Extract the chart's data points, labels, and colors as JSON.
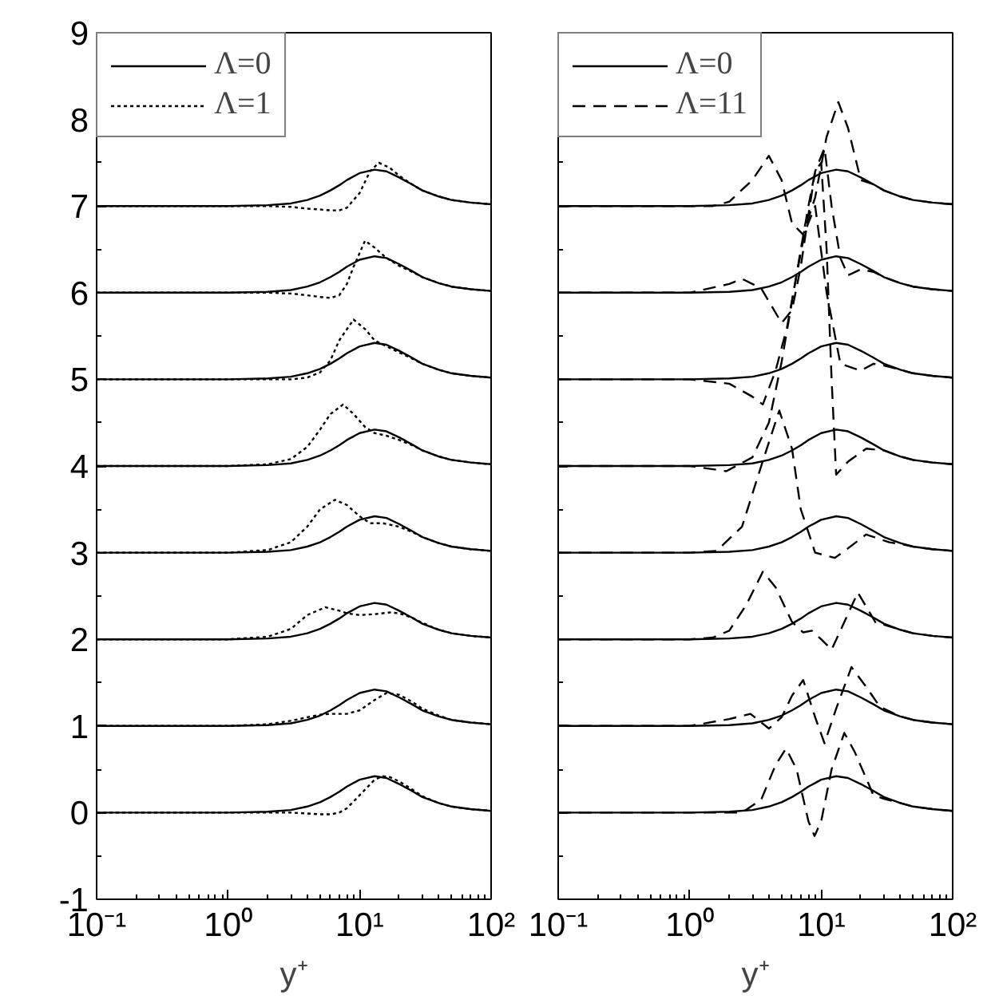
{
  "chart_data": [
    {
      "type": "line",
      "xlabel": "y⁺",
      "log": "x",
      "xlim": [
        0.1,
        100
      ],
      "ylim": [
        -1,
        9
      ],
      "legend": "top left",
      "grid": false,
      "xticks": [
        {
          "value": 0.1,
          "label": "10⁻¹"
        },
        {
          "value": 1,
          "label": "10⁰"
        },
        {
          "value": 10,
          "label": "10¹"
        },
        {
          "value": 100,
          "label": "10²"
        }
      ],
      "yticks": [
        -1,
        0,
        1,
        2,
        3,
        4,
        5,
        6,
        7,
        8,
        9
      ],
      "series": [
        {
          "name": "Λ=0",
          "color": "#000000",
          "line_style": "solid",
          "x": [
            0.1,
            1,
            2,
            3,
            4,
            5,
            6,
            7,
            8,
            10,
            13,
            16,
            20,
            25,
            30,
            40,
            50,
            70,
            100
          ],
          "values": [
            0,
            0,
            0.01,
            0.03,
            0.07,
            0.12,
            0.18,
            0.24,
            0.3,
            0.38,
            0.42,
            0.4,
            0.33,
            0.25,
            0.18,
            0.11,
            0.07,
            0.04,
            0.02
          ]
        },
        {
          "name": "Λ=1",
          "color": "#000000",
          "line_style": "dotted",
          "x": [
            0.1,
            1,
            3,
            4,
            5,
            6,
            7,
            8,
            10,
            13,
            15,
            17,
            20,
            25,
            30,
            40,
            50,
            70,
            100
          ],
          "values": [
            0,
            0,
            0,
            -0.01,
            -0.02,
            -0.02,
            0,
            0.05,
            0.2,
            0.38,
            0.42,
            0.41,
            0.36,
            0.27,
            0.19,
            0.11,
            0.07,
            0.04,
            0.02
          ]
        },
        {
          "color": "#000000",
          "line_style": "solid",
          "x": [
            0.1,
            1,
            2,
            3,
            4,
            5,
            6,
            7,
            8,
            10,
            13,
            16,
            20,
            25,
            30,
            40,
            50,
            70,
            100
          ],
          "values": [
            1,
            1,
            1.01,
            1.03,
            1.07,
            1.12,
            1.18,
            1.24,
            1.3,
            1.38,
            1.42,
            1.4,
            1.33,
            1.25,
            1.18,
            1.11,
            1.07,
            1.04,
            1.02
          ]
        },
        {
          "color": "#000000",
          "line_style": "dotted",
          "x": [
            0.1,
            1,
            2,
            3,
            4,
            5,
            6,
            7,
            8,
            10,
            13,
            16,
            20,
            25,
            30,
            40,
            50,
            70,
            100
          ],
          "values": [
            1,
            1,
            1.02,
            1.06,
            1.1,
            1.13,
            1.14,
            1.14,
            1.14,
            1.18,
            1.3,
            1.38,
            1.36,
            1.28,
            1.2,
            1.12,
            1.07,
            1.04,
            1.02
          ]
        },
        {
          "color": "#000000",
          "line_style": "solid",
          "x": [
            0.1,
            1,
            2,
            3,
            4,
            5,
            6,
            7,
            8,
            10,
            13,
            16,
            20,
            25,
            30,
            40,
            50,
            70,
            100
          ],
          "values": [
            2,
            2,
            2.01,
            2.03,
            2.07,
            2.12,
            2.18,
            2.24,
            2.3,
            2.38,
            2.42,
            2.4,
            2.33,
            2.25,
            2.18,
            2.11,
            2.07,
            2.04,
            2.02
          ]
        },
        {
          "color": "#000000",
          "line_style": "dotted",
          "x": [
            0.1,
            1,
            2,
            3,
            4,
            5.5,
            7,
            8,
            10,
            13,
            17,
            20,
            25,
            30,
            40,
            50,
            70,
            100
          ],
          "values": [
            2,
            2,
            2.03,
            2.12,
            2.28,
            2.37,
            2.33,
            2.3,
            2.28,
            2.29,
            2.31,
            2.3,
            2.25,
            2.19,
            2.11,
            2.07,
            2.04,
            2.02
          ]
        },
        {
          "color": "#000000",
          "line_style": "solid",
          "x": [
            0.1,
            1,
            2,
            3,
            4,
            5,
            6,
            7,
            8,
            10,
            13,
            16,
            20,
            25,
            30,
            40,
            50,
            70,
            100
          ],
          "values": [
            3,
            3,
            3.01,
            3.03,
            3.07,
            3.12,
            3.18,
            3.24,
            3.3,
            3.38,
            3.42,
            3.4,
            3.33,
            3.25,
            3.18,
            3.11,
            3.07,
            3.04,
            3.02
          ]
        },
        {
          "color": "#000000",
          "line_style": "dotted",
          "x": [
            0.1,
            1,
            2,
            3,
            4,
            5,
            6.5,
            8,
            10,
            12,
            15,
            20,
            25,
            30,
            40,
            50,
            70,
            100
          ],
          "values": [
            3,
            3,
            3.03,
            3.12,
            3.3,
            3.5,
            3.61,
            3.55,
            3.42,
            3.34,
            3.34,
            3.3,
            3.24,
            3.18,
            3.11,
            3.07,
            3.04,
            3.02
          ]
        },
        {
          "color": "#000000",
          "line_style": "solid",
          "x": [
            0.1,
            1,
            2,
            3,
            4,
            5,
            6,
            7,
            8,
            10,
            13,
            16,
            20,
            25,
            30,
            40,
            50,
            70,
            100
          ],
          "values": [
            4,
            4,
            4.01,
            4.03,
            4.07,
            4.12,
            4.18,
            4.24,
            4.3,
            4.38,
            4.42,
            4.4,
            4.33,
            4.25,
            4.18,
            4.11,
            4.07,
            4.04,
            4.02
          ]
        },
        {
          "color": "#000000",
          "line_style": "dotted",
          "x": [
            0.1,
            1,
            2,
            3,
            4,
            5,
            6,
            7.5,
            9,
            11,
            13,
            16,
            20,
            25,
            30,
            40,
            50,
            70,
            100
          ],
          "values": [
            4,
            4,
            4.02,
            4.08,
            4.22,
            4.42,
            4.6,
            4.71,
            4.6,
            4.45,
            4.38,
            4.35,
            4.3,
            4.24,
            4.18,
            4.11,
            4.07,
            4.04,
            4.02
          ]
        },
        {
          "color": "#000000",
          "line_style": "solid",
          "x": [
            0.1,
            1,
            2,
            3,
            4,
            5,
            6,
            7,
            8,
            10,
            13,
            16,
            20,
            25,
            30,
            40,
            50,
            70,
            100
          ],
          "values": [
            5,
            5,
            5.01,
            5.03,
            5.07,
            5.12,
            5.18,
            5.24,
            5.3,
            5.38,
            5.42,
            5.4,
            5.33,
            5.25,
            5.18,
            5.11,
            5.07,
            5.04,
            5.02
          ]
        },
        {
          "color": "#000000",
          "line_style": "dotted",
          "x": [
            0.1,
            1,
            2,
            3,
            4,
            5,
            6,
            7,
            9,
            11,
            13,
            16,
            20,
            25,
            30,
            40,
            50,
            70,
            100
          ],
          "values": [
            5,
            5,
            5,
            5,
            5.02,
            5.08,
            5.22,
            5.45,
            5.69,
            5.58,
            5.45,
            5.38,
            5.31,
            5.24,
            5.18,
            5.11,
            5.07,
            5.04,
            5.02
          ]
        },
        {
          "color": "#000000",
          "line_style": "solid",
          "x": [
            0.1,
            1,
            2,
            3,
            4,
            5,
            6,
            7,
            8,
            10,
            13,
            16,
            20,
            25,
            30,
            40,
            50,
            70,
            100
          ],
          "values": [
            6,
            6,
            6.01,
            6.03,
            6.07,
            6.12,
            6.18,
            6.24,
            6.3,
            6.38,
            6.42,
            6.4,
            6.33,
            6.25,
            6.18,
            6.11,
            6.07,
            6.04,
            6.02
          ]
        },
        {
          "color": "#000000",
          "line_style": "dotted",
          "x": [
            0.1,
            1,
            2,
            3,
            4,
            5,
            6,
            7,
            8,
            9,
            11,
            13,
            16,
            20,
            25,
            30,
            40,
            50,
            70,
            100
          ],
          "values": [
            6,
            6,
            6,
            5.99,
            5.97,
            5.95,
            5.94,
            5.97,
            6.1,
            6.3,
            6.6,
            6.52,
            6.4,
            6.31,
            6.24,
            6.18,
            6.11,
            6.07,
            6.04,
            6.02
          ]
        },
        {
          "color": "#000000",
          "line_style": "solid",
          "x": [
            0.1,
            1,
            2,
            3,
            4,
            5,
            6,
            7,
            8,
            10,
            13,
            16,
            20,
            25,
            30,
            40,
            50,
            70,
            100
          ],
          "values": [
            7,
            7,
            7.01,
            7.03,
            7.07,
            7.12,
            7.18,
            7.24,
            7.3,
            7.38,
            7.42,
            7.4,
            7.33,
            7.25,
            7.18,
            7.11,
            7.07,
            7.04,
            7.02
          ]
        },
        {
          "color": "#000000",
          "line_style": "dotted",
          "x": [
            0.1,
            1,
            2,
            3,
            4,
            5,
            6,
            7,
            8,
            10,
            12,
            14,
            17,
            20,
            25,
            30,
            40,
            50,
            70,
            100
          ],
          "values": [
            7,
            7,
            7,
            6.99,
            6.97,
            6.96,
            6.95,
            6.95,
            6.98,
            7.15,
            7.4,
            7.5,
            7.44,
            7.35,
            7.25,
            7.18,
            7.11,
            7.07,
            7.04,
            7.02
          ]
        }
      ]
    },
    {
      "type": "line",
      "xlabel": "y⁺",
      "log": "x",
      "xlim": [
        0.1,
        100
      ],
      "ylim": [
        -1,
        9
      ],
      "legend": "top left",
      "grid": false,
      "tick_labels": "x",
      "xticks": [
        {
          "value": 0.1,
          "label": "10⁻¹"
        },
        {
          "value": 1,
          "label": "10⁰"
        },
        {
          "value": 10,
          "label": "10¹"
        },
        {
          "value": 100,
          "label": "10²"
        }
      ],
      "yticks": [
        {
          "value": -1,
          "label": null
        },
        {
          "value": 0,
          "label": null
        },
        {
          "value": 1,
          "label": null
        },
        {
          "value": 2,
          "label": null
        },
        {
          "value": 3,
          "label": null
        },
        {
          "value": 4,
          "label": null
        },
        {
          "value": 5,
          "label": null
        },
        {
          "value": 6,
          "label": null
        },
        {
          "value": 7,
          "label": null
        },
        {
          "value": 8,
          "label": null
        },
        {
          "value": 9,
          "label": null
        }
      ],
      "series": [
        {
          "name": "Λ=0",
          "color": "#000000",
          "line_style": "solid",
          "x": [
            0.1,
            1,
            2,
            3,
            4,
            5,
            6,
            7,
            8,
            10,
            13,
            16,
            20,
            25,
            30,
            40,
            50,
            70,
            100
          ],
          "values": [
            0,
            0,
            0.01,
            0.03,
            0.07,
            0.12,
            0.18,
            0.24,
            0.3,
            0.38,
            0.42,
            0.4,
            0.33,
            0.25,
            0.18,
            0.11,
            0.07,
            0.04,
            0.02
          ]
        },
        {
          "name": "Λ=11",
          "color": "#000000",
          "line_style": "dashed",
          "x": [
            0.1,
            1,
            2.5,
            3.5,
            4.5,
            5.4,
            6.5,
            8,
            8.9,
            10,
            12,
            15,
            18,
            25,
            30,
            40,
            50,
            70,
            100
          ],
          "values": [
            0,
            0,
            0,
            0.15,
            0.55,
            0.74,
            0.5,
            -0.1,
            -0.27,
            -0.1,
            0.5,
            0.92,
            0.7,
            0.2,
            0.16,
            0.11,
            0.07,
            0.04,
            0.02
          ]
        },
        {
          "color": "#000000",
          "line_style": "solid",
          "x": [
            0.1,
            1,
            2,
            3,
            4,
            5,
            6,
            7,
            8,
            10,
            13,
            16,
            20,
            25,
            30,
            40,
            50,
            70,
            100
          ],
          "values": [
            1,
            1,
            1.01,
            1.03,
            1.07,
            1.12,
            1.18,
            1.24,
            1.3,
            1.38,
            1.42,
            1.4,
            1.33,
            1.25,
            1.18,
            1.11,
            1.07,
            1.04,
            1.02
          ]
        },
        {
          "color": "#000000",
          "line_style": "dashed",
          "x": [
            0.1,
            1,
            2,
            2.9,
            4,
            5,
            6,
            7.3,
            9,
            10.6,
            13,
            17,
            22,
            28,
            40,
            50,
            70,
            100
          ],
          "values": [
            1,
            1,
            1.08,
            1.14,
            0.97,
            1.1,
            1.35,
            1.53,
            1.1,
            0.8,
            1.2,
            1.68,
            1.45,
            1.22,
            1.11,
            1.07,
            1.04,
            1.02
          ]
        },
        {
          "color": "#000000",
          "line_style": "solid",
          "x": [
            0.1,
            1,
            2,
            3,
            4,
            5,
            6,
            7,
            8,
            10,
            13,
            16,
            20,
            25,
            30,
            40,
            50,
            70,
            100
          ],
          "values": [
            2,
            2,
            2.01,
            2.03,
            2.07,
            2.12,
            2.18,
            2.24,
            2.3,
            2.38,
            2.42,
            2.4,
            2.33,
            2.25,
            2.18,
            2.11,
            2.07,
            2.04,
            2.02
          ]
        },
        {
          "color": "#000000",
          "line_style": "dashed",
          "x": [
            0.1,
            1,
            1.5,
            2,
            2.7,
            3.6,
            4.5,
            6,
            7.3,
            8.5,
            10,
            12,
            15,
            19,
            26,
            30,
            40,
            50,
            70,
            100
          ],
          "values": [
            2,
            2,
            2.02,
            2.1,
            2.4,
            2.78,
            2.6,
            2.2,
            2.08,
            2.1,
            2,
            1.88,
            2.2,
            2.54,
            2.19,
            2.17,
            2.11,
            2.07,
            2.04,
            2.02
          ]
        },
        {
          "color": "#000000",
          "line_style": "solid",
          "x": [
            0.1,
            1,
            2,
            3,
            4,
            5,
            6,
            7,
            8,
            10,
            13,
            16,
            20,
            25,
            30,
            40,
            50,
            70,
            100
          ],
          "values": [
            3,
            3,
            3.01,
            3.03,
            3.07,
            3.12,
            3.18,
            3.24,
            3.3,
            3.38,
            3.42,
            3.4,
            3.33,
            3.25,
            3.18,
            3.11,
            3.07,
            3.04,
            3.02
          ]
        },
        {
          "color": "#000000",
          "line_style": "dashed",
          "x": [
            0.1,
            1,
            1.6,
            2.5,
            3.5,
            4.8,
            6,
            7,
            9,
            12.7,
            16,
            22,
            33,
            40,
            50,
            70,
            100
          ],
          "values": [
            3,
            3,
            3.02,
            3.3,
            4,
            4.64,
            4.2,
            3.5,
            3,
            2.94,
            3.05,
            3.21,
            3.12,
            3.1,
            3.07,
            3.04,
            3.02
          ]
        },
        {
          "color": "#000000",
          "line_style": "solid",
          "x": [
            0.1,
            1,
            2,
            3,
            4,
            5,
            6,
            7,
            8,
            10,
            13,
            16,
            20,
            25,
            30,
            40,
            50,
            70,
            100
          ],
          "values": [
            4,
            4,
            4.01,
            4.03,
            4.07,
            4.12,
            4.18,
            4.24,
            4.3,
            4.38,
            4.42,
            4.4,
            4.33,
            4.25,
            4.18,
            4.11,
            4.07,
            4.04,
            4.02
          ]
        },
        {
          "color": "#000000",
          "line_style": "dashed",
          "x": [
            0.1,
            1,
            1.9,
            3,
            4,
            5,
            6,
            7,
            8,
            9,
            10,
            11,
            12,
            13,
            16,
            22,
            30,
            40,
            50,
            70,
            100
          ],
          "values": [
            4,
            4,
            3.94,
            4.1,
            4.5,
            5.2,
            5.9,
            6.5,
            7,
            7.4,
            7.5,
            6.5,
            5,
            3.9,
            4.05,
            4.2,
            4.18,
            4.11,
            4.07,
            4.04,
            4.02
          ]
        },
        {
          "color": "#000000",
          "line_style": "solid",
          "x": [
            0.1,
            1,
            2,
            3,
            4,
            5,
            6,
            7,
            8,
            10,
            13,
            16,
            20,
            25,
            30,
            40,
            50,
            70,
            100
          ],
          "values": [
            5,
            5,
            5.01,
            5.03,
            5.07,
            5.12,
            5.18,
            5.24,
            5.3,
            5.38,
            5.42,
            5.4,
            5.33,
            5.25,
            5.18,
            5.11,
            5.07,
            5.04,
            5.02
          ]
        },
        {
          "color": "#000000",
          "line_style": "dashed",
          "x": [
            0.1,
            1,
            2,
            3,
            3.6,
            4.5,
            5.5,
            6.5,
            7.5,
            9,
            11,
            14,
            20,
            25,
            30,
            40,
            50,
            70,
            100
          ],
          "values": [
            5,
            5,
            4.95,
            4.8,
            4.71,
            5.1,
            5.6,
            6.2,
            6.7,
            7,
            6,
            5.18,
            5.1,
            5.18,
            5.16,
            5.11,
            5.07,
            5.04,
            5.02
          ]
        },
        {
          "color": "#000000",
          "line_style": "solid",
          "x": [
            0.1,
            1,
            2,
            3,
            4,
            5,
            6,
            7,
            8,
            10,
            13,
            16,
            20,
            25,
            30,
            40,
            50,
            70,
            100
          ],
          "values": [
            6,
            6,
            6.01,
            6.03,
            6.07,
            6.12,
            6.18,
            6.24,
            6.3,
            6.38,
            6.42,
            6.4,
            6.33,
            6.25,
            6.18,
            6.11,
            6.07,
            6.04,
            6.02
          ]
        },
        {
          "color": "#000000",
          "line_style": "dashed",
          "x": [
            0.1,
            1,
            2,
            2.5,
            3.5,
            5,
            6,
            7,
            8,
            9,
            10.6,
            12,
            14,
            16,
            20,
            25,
            30,
            40,
            50,
            70,
            100
          ],
          "values": [
            6,
            6,
            6.1,
            6.16,
            6.05,
            5.65,
            5.8,
            6.3,
            6.9,
            7.4,
            7.67,
            7,
            6.4,
            6.2,
            6.27,
            6.24,
            6.18,
            6.11,
            6.07,
            6.04,
            6.02
          ]
        },
        {
          "color": "#000000",
          "line_style": "solid",
          "x": [
            0.1,
            1,
            2,
            3,
            4,
            5,
            6,
            7,
            8,
            10,
            13,
            16,
            20,
            25,
            30,
            40,
            50,
            70,
            100
          ],
          "values": [
            7,
            7,
            7.01,
            7.03,
            7.07,
            7.12,
            7.18,
            7.24,
            7.3,
            7.38,
            7.42,
            7.4,
            7.33,
            7.25,
            7.18,
            7.11,
            7.07,
            7.04,
            7.02
          ]
        },
        {
          "color": "#000000",
          "line_style": "dashed",
          "x": [
            0.1,
            1,
            1.5,
            2,
            3,
            4,
            5,
            6,
            7.3,
            9,
            11,
            13.5,
            16,
            20,
            25,
            30,
            40,
            50,
            70,
            100
          ],
          "values": [
            7,
            7,
            7,
            7.05,
            7.3,
            7.58,
            7.3,
            6.8,
            6.67,
            7.1,
            7.8,
            8.2,
            7.9,
            7.3,
            7.25,
            7.18,
            7.11,
            7.07,
            7.04,
            7.02
          ]
        }
      ]
    }
  ]
}
